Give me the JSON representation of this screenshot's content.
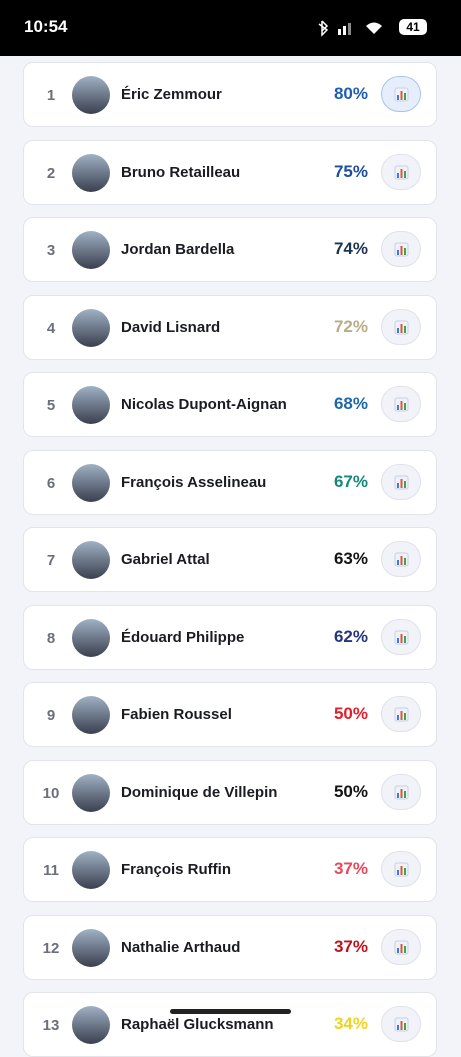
{
  "status_bar": {
    "time": "10:54",
    "battery": "41"
  },
  "rows": [
    {
      "rank": "1",
      "name": "Éric Zemmour",
      "percent": "80%",
      "color": "#1f5cb5"
    },
    {
      "rank": "2",
      "name": "Bruno Retailleau",
      "percent": "75%",
      "color": "#1d4e9e"
    },
    {
      "rank": "3",
      "name": "Jordan Bardella",
      "percent": "74%",
      "color": "#1b3551"
    },
    {
      "rank": "4",
      "name": "David Lisnard",
      "percent": "72%",
      "color": "#b8ad86"
    },
    {
      "rank": "5",
      "name": "Nicolas Dupont-Aignan",
      "percent": "68%",
      "color": "#1f68a6"
    },
    {
      "rank": "6",
      "name": "François Asselineau",
      "percent": "67%",
      "color": "#16897a"
    },
    {
      "rank": "7",
      "name": "Gabriel Attal",
      "percent": "63%",
      "color": "#141414"
    },
    {
      "rank": "8",
      "name": "Édouard Philippe",
      "percent": "62%",
      "color": "#27357c"
    },
    {
      "rank": "9",
      "name": "Fabien Roussel",
      "percent": "50%",
      "color": "#e1202b"
    },
    {
      "rank": "10",
      "name": "Dominique de Villepin",
      "percent": "50%",
      "color": "#141414"
    },
    {
      "rank": "11",
      "name": "François Ruffin",
      "percent": "37%",
      "color": "#e9485b"
    },
    {
      "rank": "12",
      "name": "Nathalie Arthaud",
      "percent": "37%",
      "color": "#c3111c"
    },
    {
      "rank": "13",
      "name": "Raphaël Glucksmann",
      "percent": "34%",
      "color": "#f1d21f"
    }
  ]
}
